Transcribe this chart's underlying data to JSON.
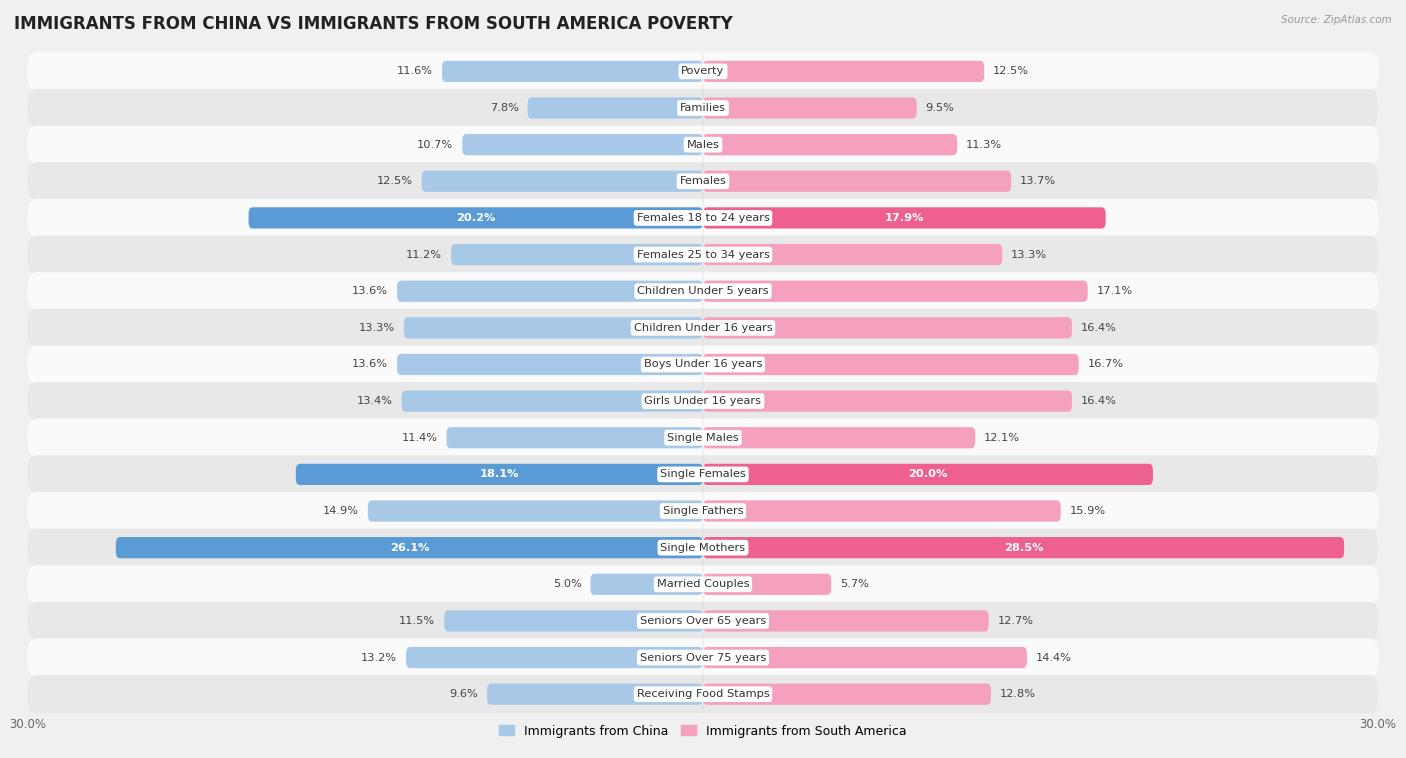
{
  "title": "IMMIGRANTS FROM CHINA VS IMMIGRANTS FROM SOUTH AMERICA POVERTY",
  "source": "Source: ZipAtlas.com",
  "categories": [
    "Poverty",
    "Families",
    "Males",
    "Females",
    "Females 18 to 24 years",
    "Females 25 to 34 years",
    "Children Under 5 years",
    "Children Under 16 years",
    "Boys Under 16 years",
    "Girls Under 16 years",
    "Single Males",
    "Single Females",
    "Single Fathers",
    "Single Mothers",
    "Married Couples",
    "Seniors Over 65 years",
    "Seniors Over 75 years",
    "Receiving Food Stamps"
  ],
  "china_values": [
    11.6,
    7.8,
    10.7,
    12.5,
    20.2,
    11.2,
    13.6,
    13.3,
    13.6,
    13.4,
    11.4,
    18.1,
    14.9,
    26.1,
    5.0,
    11.5,
    13.2,
    9.6
  ],
  "south_america_values": [
    12.5,
    9.5,
    11.3,
    13.7,
    17.9,
    13.3,
    17.1,
    16.4,
    16.7,
    16.4,
    12.1,
    20.0,
    15.9,
    28.5,
    5.7,
    12.7,
    14.4,
    12.8
  ],
  "china_color": "#a8c8e8",
  "south_america_color": "#f4a0be",
  "china_highlight_color": "#5b9bd5",
  "south_america_highlight_color": "#ee6090",
  "highlight_rows": [
    4,
    11,
    13
  ],
  "axis_max": 30.0,
  "bar_height": 0.58,
  "bg_color": "#f0f0f0",
  "row_color_light": "#fafafa",
  "row_color_dark": "#e8e8e8",
  "label_fontsize": 8.2,
  "value_fontsize": 8.2,
  "title_fontsize": 12.0
}
